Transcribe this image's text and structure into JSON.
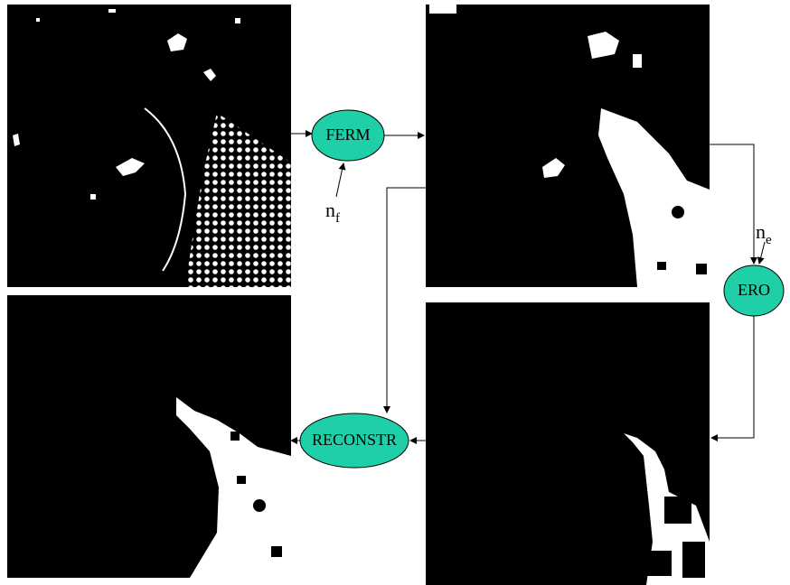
{
  "nodes": [
    {
      "label": "FERM"
    },
    {
      "label": "ERO"
    },
    {
      "label": "RECONSTR"
    }
  ],
  "parameters": [
    {
      "base": "n",
      "sub": "f"
    },
    {
      "base": "n",
      "sub": "e"
    }
  ]
}
